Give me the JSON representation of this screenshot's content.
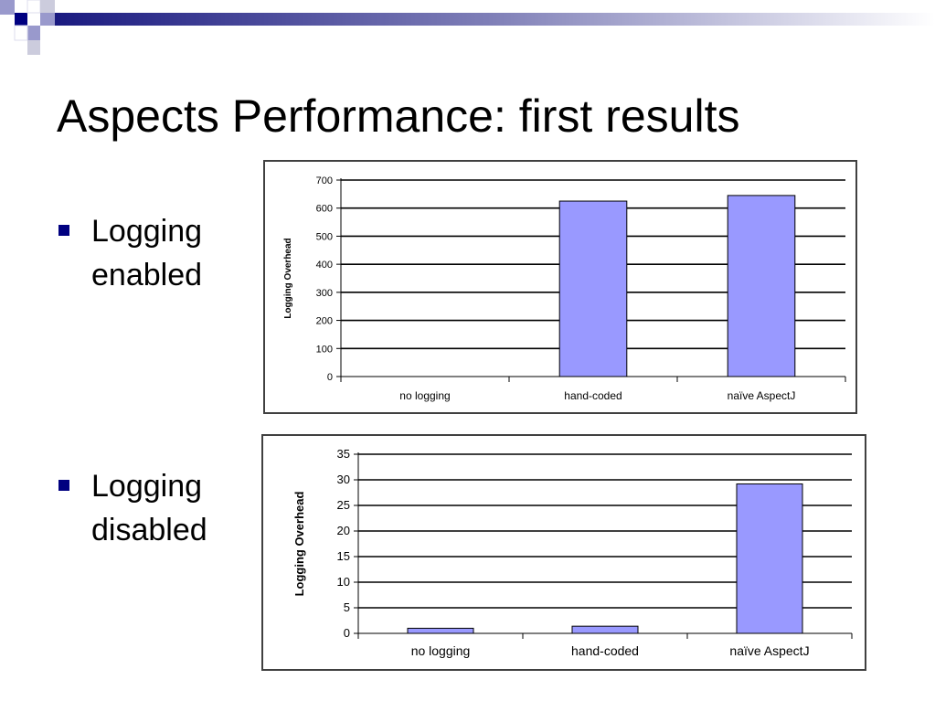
{
  "slide": {
    "title": "Aspects Performance: first results",
    "bullets": [
      {
        "line1": "Logging",
        "line2": "enabled"
      },
      {
        "line1": "Logging",
        "line2": "disabled"
      }
    ]
  },
  "colors": {
    "bar": "#9999ff",
    "bar_stroke": "#000000",
    "bullet": "#000080",
    "decor_dark": "#000080",
    "decor_light": "#9999cc"
  },
  "chart_data": [
    {
      "type": "bar",
      "title": "",
      "categories": [
        "no logging",
        "hand-coded",
        "naïve AspectJ"
      ],
      "values": [
        0,
        625,
        645
      ],
      "xlabel": "",
      "ylabel": "Logging Overhead",
      "ylim": [
        0,
        700
      ],
      "yticks": [
        0,
        100,
        200,
        300,
        400,
        500,
        600,
        700
      ],
      "grid": true,
      "legend": "none"
    },
    {
      "type": "bar",
      "title": "",
      "categories": [
        "no logging",
        "hand-coded",
        "naïve AspectJ"
      ],
      "values": [
        1,
        1.4,
        29.2
      ],
      "xlabel": "",
      "ylabel": "Logging Overhead",
      "ylim": [
        0,
        35
      ],
      "yticks": [
        0,
        5,
        10,
        15,
        20,
        25,
        30,
        35
      ],
      "grid": true,
      "legend": "none"
    }
  ]
}
